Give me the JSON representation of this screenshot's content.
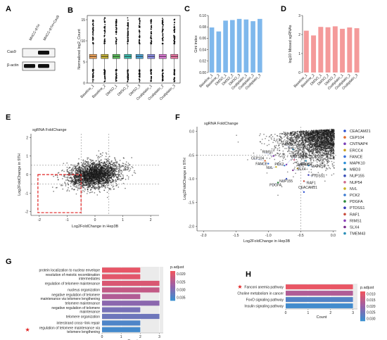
{
  "panels": {
    "A": {
      "letter": "A",
      "lanes": [
        "MHCC-97H",
        "MHCC-97H+Cas9"
      ],
      "rows": [
        {
          "label": "Cas9",
          "present": [
            false,
            true
          ]
        },
        {
          "label": "β-actin",
          "present": [
            true,
            true
          ]
        }
      ]
    },
    "B": {
      "letter": "B",
      "chart_data": {
        "type": "box",
        "categories": [
          "Baseline_1",
          "Baseline_2",
          "DMSO_1",
          "DMSO_2",
          "DMSO_3",
          "Oxaliplatin_1",
          "Oxaliplatin_2",
          "Oxaliplatin_3"
        ],
        "colors": [
          "#f0a45a",
          "#c9b63a",
          "#5cbf5c",
          "#3fbfb0",
          "#4fa8d8",
          "#8f8fe8",
          "#e07ad8",
          "#f07aa8"
        ],
        "median": 6.3,
        "q1": 5.8,
        "q3": 6.8,
        "whisker_low": 3.2,
        "whisker_high": 9.3,
        "outlier_range_high": [
          9.3,
          15.5
        ],
        "outlier_range_low": [
          0.3,
          3.2
        ],
        "ylabel": "Normalized log2_Count",
        "yticks": [
          0,
          5,
          10,
          15
        ],
        "ylim": [
          0,
          16
        ]
      }
    },
    "C": {
      "letter": "C",
      "chart_data": {
        "type": "bar",
        "categories": [
          "Baseline_1",
          "Baseline_2",
          "DMSO_1",
          "DMSO_2",
          "DMSO_3",
          "Oxaliplatin_1",
          "Oxaliplatin_2",
          "Oxaliplatin_3"
        ],
        "values": [
          0.079,
          0.072,
          0.091,
          0.092,
          0.094,
          0.093,
          0.09,
          0.094
        ],
        "ylabel": "Gini index",
        "ylim": [
          0,
          0.1
        ],
        "yticks": [
          "0.00",
          "0.02",
          "0.04",
          "0.06",
          "0.08",
          "0.10"
        ],
        "color": "#7fb8ec"
      }
    },
    "D": {
      "letter": "D",
      "chart_data": {
        "type": "bar",
        "categories": [
          "Baseline_1",
          "Baseline_2",
          "DMSO_1",
          "DMSO_2",
          "DMSO_3",
          "Oxaliplatin_1",
          "Oxaliplatin_2",
          "Oxaliplatin_3"
        ],
        "values": [
          2.2,
          1.95,
          2.4,
          2.38,
          2.43,
          2.3,
          2.37,
          2.33
        ],
        "ylabel": "log10 Missed sgRNAs",
        "ylim": [
          0,
          3
        ],
        "yticks": [
          "0",
          "1",
          "2",
          "3"
        ],
        "color": "#f49a9a"
      }
    },
    "E": {
      "letter": "E",
      "chart_data": {
        "type": "scatter",
        "title": "sgRNA FoldChange",
        "xlabel": "Log2FoldChange in Hep3B",
        "ylabel": "Log2FoldChange in 97H",
        "xlim": [
          -2.3,
          2.3
        ],
        "ylim": [
          -2.2,
          2.2
        ],
        "xticks": [
          -2,
          -1,
          0,
          1,
          2
        ],
        "yticks": [
          -2,
          -1,
          0,
          1,
          2
        ],
        "vlines": [
          -0.5,
          0.5
        ],
        "hlines": [
          0.5,
          -0.5
        ],
        "highlight_box": {
          "x": [
            -2.05,
            -0.5
          ],
          "y": [
            -2.05,
            0
          ]
        }
      }
    },
    "F": {
      "letter": "F",
      "chart_data": {
        "type": "scatter",
        "title": "sgRNA FoldChange",
        "xlabel": "Log2FoldChange in Hep3B",
        "ylabel": "Log2FoldChange in 97H",
        "xlim": [
          -2.1,
          0.05
        ],
        "ylim": [
          -2.1,
          0.1
        ],
        "xticks": [
          "-2.0",
          "-1.5",
          "-1.0",
          "-0.5",
          "0.0"
        ],
        "yticks": [
          "0.0",
          "-0.5",
          "-1.0",
          "-1.5",
          "-2.0"
        ],
        "vline": -0.5,
        "hline": -0.5,
        "genes": [
          {
            "name": "CEACAM21",
            "color": "#2a4fd0",
            "x": -0.45,
            "y": -1.28
          },
          {
            "name": "CEP104",
            "color": "#e06a2a",
            "x": -1.05,
            "y": -0.62
          },
          {
            "name": "CNTNAP4",
            "color": "#7a3fb8",
            "x": -0.72,
            "y": -0.7
          },
          {
            "name": "ERCC4",
            "color": "#c8a020",
            "x": -0.55,
            "y": -0.78
          },
          {
            "name": "FANCE",
            "color": "#3a6fd8",
            "x": -1.0,
            "y": -0.68
          },
          {
            "name": "MAPK10",
            "color": "#2a8fd8",
            "x": -0.38,
            "y": -0.72
          },
          {
            "name": "MBD3",
            "color": "#2a7a9a",
            "x": -0.62,
            "y": -0.38
          },
          {
            "name": "NUP155",
            "color": "#3a4fb8",
            "x": -0.72,
            "y": -1.0
          },
          {
            "name": "NUP54",
            "color": "#d06a8a",
            "x": -0.6,
            "y": -0.6
          },
          {
            "name": "NVL",
            "color": "#c8b020",
            "x": -0.88,
            "y": -0.75
          },
          {
            "name": "PCK2",
            "color": "#3a7ad0",
            "x": -0.75,
            "y": -0.72
          },
          {
            "name": "PDGFA",
            "color": "#2a8a3a",
            "x": -0.85,
            "y": -1.08
          },
          {
            "name": "PTDSS1",
            "color": "#3a3ab8",
            "x": -0.38,
            "y": -0.92
          },
          {
            "name": "RAF1",
            "color": "#c84a3a",
            "x": -0.45,
            "y": -1.05
          },
          {
            "name": "RIMS1",
            "color": "#8a3fb8",
            "x": -0.92,
            "y": -0.52
          },
          {
            "name": "SLX4",
            "color": "#7a2a8a",
            "x": -0.62,
            "y": -0.82
          },
          {
            "name": "TMEM43",
            "color": "#2a8fb8",
            "x": -0.42,
            "y": -0.62
          }
        ]
      }
    },
    "G": {
      "letter": "G",
      "chart_data": {
        "type": "bar",
        "orientation": "horizontal",
        "xlabel": "Count",
        "xticks": [
          0,
          1,
          2,
          3
        ],
        "xlim": [
          0,
          3.2
        ],
        "legend_title": "p.adjust",
        "legend_ticks": [
          "0.020",
          "0.025",
          "0.030",
          "0.035"
        ],
        "legend_range": [
          0.018,
          0.037
        ],
        "starred_index": 9,
        "terms": [
          {
            "label": "protein localization to nuclear envelope",
            "count": 2,
            "padj": 0.019
          },
          {
            "label": "resolution of meiotic recombination intermediates",
            "count": 2,
            "padj": 0.0195
          },
          {
            "label": "regulation of telomere maintenance",
            "count": 3,
            "padj": 0.0205
          },
          {
            "label": "nucleus organization",
            "count": 3,
            "padj": 0.023
          },
          {
            "label": "negative regulation of telomere maintenance via telomere lengthening",
            "count": 2,
            "padj": 0.025
          },
          {
            "label": "telomere maintenance",
            "count": 3,
            "padj": 0.029
          },
          {
            "label": "negative regulation of telomere maintenance",
            "count": 2,
            "padj": 0.031
          },
          {
            "label": "telomere organization",
            "count": 3,
            "padj": 0.032
          },
          {
            "label": "interstrand cross−link repair",
            "count": 2,
            "padj": 0.035
          },
          {
            "label": "regulation of telomere maintenance via telomere lengthening",
            "count": 2,
            "padj": 0.036
          }
        ]
      }
    },
    "H": {
      "letter": "H",
      "chart_data": {
        "type": "bar",
        "orientation": "horizontal",
        "xlabel": "Count",
        "xticks": [
          0,
          1,
          2,
          3
        ],
        "xlim": [
          0,
          3.2
        ],
        "legend_title": "p.adjust",
        "legend_ticks": [
          "0.010",
          "0.015",
          "0.020",
          "0.025",
          "0.030"
        ],
        "legend_range": [
          0.008,
          0.032
        ],
        "starred_index": 0,
        "terms": [
          {
            "label": "Fanconi anemia pathway",
            "count": 3,
            "padj": 0.009
          },
          {
            "label": "Choline metabolism in cancer",
            "count": 3,
            "padj": 0.017
          },
          {
            "label": "FoxO signaling pathway",
            "count": 3,
            "padj": 0.029
          },
          {
            "label": "Insulin signaling pathway",
            "count": 3,
            "padj": 0.031
          }
        ]
      }
    }
  }
}
